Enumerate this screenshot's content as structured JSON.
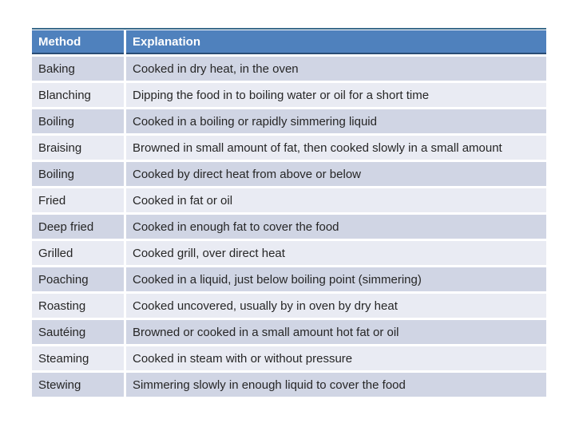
{
  "table": {
    "columns": [
      {
        "label": "Method"
      },
      {
        "label": "Explanation"
      }
    ],
    "rows": [
      {
        "method": "Baking",
        "explanation": "Cooked in dry heat, in the oven"
      },
      {
        "method": "Blanching",
        "explanation": "Dipping the food in to boiling water or oil for a short time"
      },
      {
        "method": "Boiling",
        "explanation": "Cooked in a boiling or rapidly simmering liquid"
      },
      {
        "method": "Braising",
        "explanation": "Browned in small amount of fat, then cooked slowly in a small amount"
      },
      {
        "method": "Boiling",
        "explanation": "Cooked by direct heat from above or below"
      },
      {
        "method": "Fried",
        "explanation": "Cooked in fat or oil"
      },
      {
        "method": "Deep fried",
        "explanation": "Cooked in enough fat to cover the food"
      },
      {
        "method": "Grilled",
        "explanation": "Cooked grill, over direct heat"
      },
      {
        "method": "Poaching",
        "explanation": "Cooked in a liquid, just below boiling point (simmering)"
      },
      {
        "method": "Roasting",
        "explanation": "Cooked uncovered, usually by in oven by dry heat"
      },
      {
        "method": "Sautéing",
        "explanation": "Browned or cooked in a small amount hot fat or oil"
      },
      {
        "method": "Steaming",
        "explanation": "Cooked in steam with or without pressure"
      },
      {
        "method": "Stewing",
        "explanation": "Simmering slowly in enough liquid to cover the food"
      }
    ]
  },
  "colors": {
    "header_bg": "#4F81BD",
    "header_text": "#FFFFFF",
    "header_border_bottom": "#2A4D75",
    "row_dark": "#D0D5E4",
    "row_light": "#E9EBF3",
    "top_rule": "#3A6B8C",
    "body_text": "#262626"
  }
}
